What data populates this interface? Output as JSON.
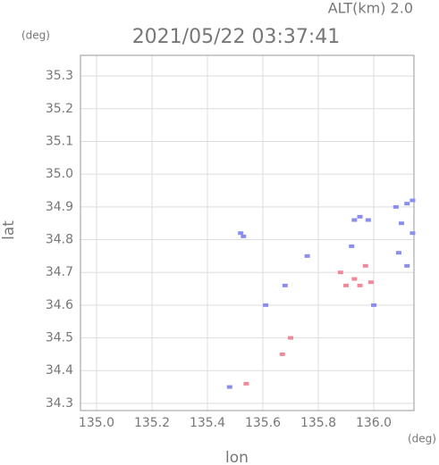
{
  "chart_data": {
    "type": "scatter",
    "title": "2021/05/22 03:37:41",
    "altitude_label": "ALT(km) 2.0",
    "x_unit": "(deg)",
    "y_unit": "(deg)",
    "x_label": "lon",
    "y_label": "lat",
    "xlim": [
      134.942,
      136.145
    ],
    "ylim": [
      34.278,
      35.363
    ],
    "xticks": [
      {
        "value": 135.0,
        "label": "135.0"
      },
      135.2,
      135.4,
      135.6,
      135.8,
      {
        "value": 136.0,
        "label": "136.0"
      }
    ],
    "yticks": [
      34.3,
      34.4,
      34.5,
      34.6,
      34.7,
      34.8,
      34.9,
      {
        "value": 35.0,
        "label": "35.0"
      },
      35.1,
      35.2,
      35.3
    ],
    "grid": true,
    "series": [
      {
        "color": "#8a8ef0",
        "x": [
          135.52,
          135.53,
          135.76,
          135.93,
          135.95,
          135.98,
          136.08,
          136.12,
          136.14,
          136.1,
          136.14,
          136.09,
          136.12,
          135.92,
          135.61,
          135.68,
          136.0,
          135.48
        ],
        "y": [
          34.82,
          34.81,
          34.75,
          34.86,
          34.87,
          34.86,
          34.9,
          34.91,
          34.92,
          34.85,
          34.82,
          34.76,
          34.72,
          34.78,
          34.6,
          34.66,
          34.6,
          34.35
        ]
      },
      {
        "color": "#f08a9a",
        "x": [
          135.93,
          135.95,
          135.97,
          135.99,
          135.9,
          135.7,
          135.54,
          135.67,
          135.88
        ],
        "y": [
          34.68,
          34.66,
          34.72,
          34.67,
          34.66,
          34.5,
          34.36,
          34.45,
          34.7
        ]
      }
    ]
  }
}
